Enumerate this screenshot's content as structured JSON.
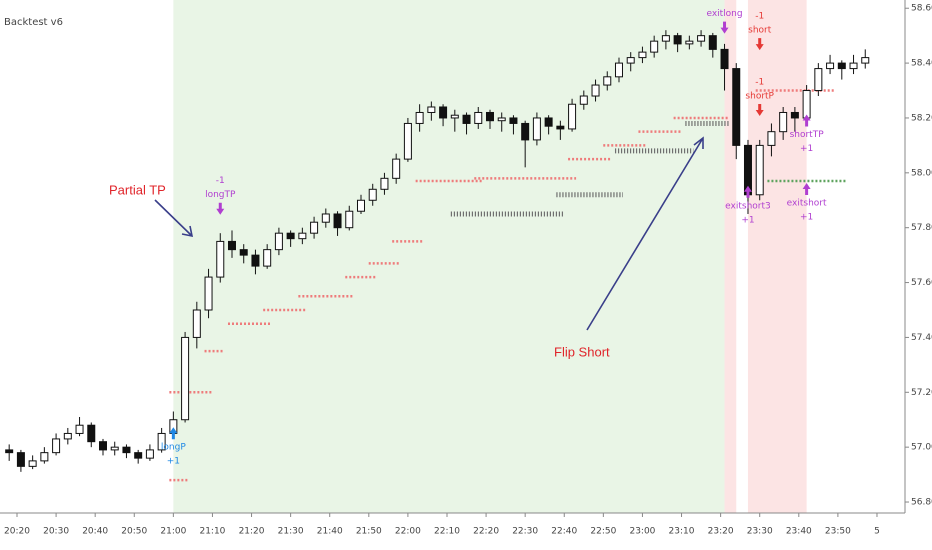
{
  "chart_data": {
    "type": "candlestick",
    "title": "Backtest v6",
    "categories": [
      "20:18",
      "20:21",
      "20:24",
      "20:27",
      "20:30",
      "20:33",
      "20:36",
      "20:39",
      "20:42",
      "20:45",
      "20:48",
      "20:51",
      "20:54",
      "20:57",
      "21:00",
      "21:03",
      "21:06",
      "21:09",
      "21:12",
      "21:15",
      "21:18",
      "21:21",
      "21:24",
      "21:27",
      "21:30",
      "21:33",
      "21:36",
      "21:39",
      "21:42",
      "21:45",
      "21:48",
      "21:51",
      "21:54",
      "21:57",
      "22:00",
      "22:03",
      "22:06",
      "22:09",
      "22:12",
      "22:15",
      "22:18",
      "22:21",
      "22:24",
      "22:27",
      "22:30",
      "22:33",
      "22:36",
      "22:39",
      "22:42",
      "22:45",
      "22:48",
      "22:51",
      "22:54",
      "22:57",
      "23:00",
      "23:03",
      "23:06",
      "23:09",
      "23:12",
      "23:15",
      "23:18",
      "23:21",
      "23:24",
      "23:27",
      "23:30",
      "23:33",
      "23:36",
      "23:39",
      "23:42",
      "23:45",
      "23:48",
      "23:51",
      "23:54",
      "23:57"
    ],
    "candles": [
      [
        56.99,
        57.01,
        56.95,
        56.98
      ],
      [
        56.98,
        56.99,
        56.91,
        56.93
      ],
      [
        56.93,
        56.97,
        56.92,
        56.95
      ],
      [
        56.95,
        57.0,
        56.94,
        56.98
      ],
      [
        56.98,
        57.05,
        56.97,
        57.03
      ],
      [
        57.03,
        57.07,
        57.01,
        57.05
      ],
      [
        57.05,
        57.11,
        57.04,
        57.08
      ],
      [
        57.08,
        57.09,
        57.0,
        57.02
      ],
      [
        57.02,
        57.03,
        56.97,
        56.99
      ],
      [
        56.99,
        57.02,
        56.97,
        57.0
      ],
      [
        57.0,
        57.01,
        56.96,
        56.98
      ],
      [
        56.98,
        56.99,
        56.94,
        56.96
      ],
      [
        56.96,
        57.01,
        56.95,
        56.99
      ],
      [
        56.99,
        57.07,
        56.98,
        57.05
      ],
      [
        57.05,
        57.13,
        57.03,
        57.1
      ],
      [
        57.1,
        57.42,
        57.09,
        57.4
      ],
      [
        57.4,
        57.53,
        57.36,
        57.5
      ],
      [
        57.5,
        57.65,
        57.47,
        57.62
      ],
      [
        57.62,
        57.78,
        57.6,
        57.75
      ],
      [
        57.75,
        57.79,
        57.69,
        57.72
      ],
      [
        57.72,
        57.74,
        57.67,
        57.7
      ],
      [
        57.7,
        57.72,
        57.63,
        57.66
      ],
      [
        57.66,
        57.74,
        57.65,
        57.72
      ],
      [
        57.72,
        57.8,
        57.7,
        57.78
      ],
      [
        57.78,
        57.79,
        57.73,
        57.76
      ],
      [
        57.76,
        57.8,
        57.74,
        57.78
      ],
      [
        57.78,
        57.84,
        57.76,
        57.82
      ],
      [
        57.82,
        57.87,
        57.8,
        57.85
      ],
      [
        57.85,
        57.86,
        57.77,
        57.8
      ],
      [
        57.8,
        57.88,
        57.79,
        57.86
      ],
      [
        57.86,
        57.92,
        57.85,
        57.9
      ],
      [
        57.9,
        57.96,
        57.88,
        57.94
      ],
      [
        57.94,
        58.0,
        57.92,
        57.98
      ],
      [
        57.98,
        58.07,
        57.96,
        58.05
      ],
      [
        58.05,
        58.2,
        58.04,
        58.18
      ],
      [
        58.18,
        58.25,
        58.15,
        58.22
      ],
      [
        58.22,
        58.26,
        58.19,
        58.24
      ],
      [
        58.24,
        58.25,
        58.17,
        58.2
      ],
      [
        58.2,
        58.23,
        58.15,
        58.21
      ],
      [
        58.21,
        58.22,
        58.14,
        58.18
      ],
      [
        58.18,
        58.24,
        58.16,
        58.22
      ],
      [
        58.22,
        58.23,
        58.16,
        58.19
      ],
      [
        58.19,
        58.22,
        58.15,
        58.2
      ],
      [
        58.2,
        58.21,
        58.14,
        58.18
      ],
      [
        58.18,
        58.19,
        58.02,
        58.12
      ],
      [
        58.12,
        58.22,
        58.1,
        58.2
      ],
      [
        58.2,
        58.21,
        58.14,
        58.17
      ],
      [
        58.17,
        58.19,
        58.12,
        58.16
      ],
      [
        58.16,
        58.27,
        58.15,
        58.25
      ],
      [
        58.25,
        58.3,
        58.23,
        58.28
      ],
      [
        58.28,
        58.34,
        58.26,
        58.32
      ],
      [
        58.32,
        58.37,
        58.3,
        58.35
      ],
      [
        58.35,
        58.42,
        58.33,
        58.4
      ],
      [
        58.4,
        58.44,
        58.37,
        58.42
      ],
      [
        58.42,
        58.46,
        58.4,
        58.44
      ],
      [
        58.44,
        58.5,
        58.42,
        58.48
      ],
      [
        58.48,
        58.52,
        58.45,
        58.5
      ],
      [
        58.5,
        58.51,
        58.44,
        58.47
      ],
      [
        58.47,
        58.5,
        58.45,
        58.48
      ],
      [
        58.48,
        58.52,
        58.46,
        58.5
      ],
      [
        58.5,
        58.51,
        58.42,
        58.45
      ],
      [
        58.45,
        58.47,
        58.3,
        58.38
      ],
      [
        58.38,
        58.4,
        58.05,
        58.1
      ],
      [
        58.1,
        58.12,
        57.85,
        57.92
      ],
      [
        57.92,
        58.12,
        57.9,
        58.1
      ],
      [
        58.1,
        58.18,
        58.06,
        58.15
      ],
      [
        58.15,
        58.24,
        58.12,
        58.22
      ],
      [
        58.22,
        58.24,
        58.15,
        58.2
      ],
      [
        58.2,
        58.32,
        58.18,
        58.3
      ],
      [
        58.3,
        58.4,
        58.28,
        58.38
      ],
      [
        58.38,
        58.43,
        58.36,
        58.4
      ],
      [
        58.4,
        58.41,
        58.34,
        58.38
      ],
      [
        58.38,
        58.43,
        58.36,
        58.4
      ],
      [
        58.4,
        58.45,
        58.38,
        58.42
      ]
    ],
    "ylim": [
      56.76,
      58.63
    ],
    "yticks": [
      {
        "value": 56.8,
        "label": "56.80"
      },
      {
        "value": 57.0,
        "label": "57.00"
      },
      {
        "value": 57.2,
        "label": "57.20"
      },
      {
        "value": 57.4,
        "label": "57.40"
      },
      {
        "value": 57.6,
        "label": "57.60"
      },
      {
        "value": 57.8,
        "label": "57.80"
      },
      {
        "value": 58.0,
        "label": "58.00"
      },
      {
        "value": 58.2,
        "label": "58.20"
      },
      {
        "value": 58.4,
        "label": "58.40"
      },
      {
        "value": 58.6,
        "label": "58.60"
      }
    ],
    "xticks": [
      "20:20",
      "20:30",
      "20:40",
      "20:50",
      "21:00",
      "21:10",
      "21:20",
      "21:30",
      "21:40",
      "21:50",
      "22:00",
      "22:10",
      "22:20",
      "22:30",
      "22:40",
      "22:50",
      "23:00",
      "23:10",
      "23:20",
      "23:30",
      "23:40",
      "23:50",
      {
        "value": "00:00",
        "label": "5"
      }
    ],
    "shading": [
      {
        "from": "21:00",
        "to": "23:21",
        "color": "#e9f5e6"
      },
      {
        "from": "23:21",
        "to": "23:24",
        "color": "#fce4e4"
      },
      {
        "from": "23:27",
        "to": "23:42",
        "color": "#fce4e4"
      }
    ],
    "levels": [
      {
        "color": "#ee7b7b",
        "segments": [
          [
            56.88,
            "21:00",
            "21:03"
          ],
          [
            57.2,
            "21:00",
            "21:09"
          ],
          [
            57.35,
            "21:09",
            "21:12"
          ],
          [
            57.45,
            "21:15",
            "21:24"
          ],
          [
            57.5,
            "21:24",
            "21:33"
          ],
          [
            57.55,
            "21:33",
            "21:45"
          ],
          [
            57.62,
            "21:45",
            "21:51"
          ],
          [
            57.67,
            "21:51",
            "21:57"
          ],
          [
            57.75,
            "21:57",
            "22:03"
          ],
          [
            57.97,
            "22:03",
            "22:18"
          ],
          [
            57.98,
            "22:18",
            "22:42"
          ],
          [
            58.05,
            "22:42",
            "22:51"
          ],
          [
            58.1,
            "22:51",
            "23:00"
          ],
          [
            58.15,
            "23:00",
            "23:09"
          ],
          [
            58.2,
            "23:09",
            "23:21"
          ],
          [
            58.3,
            "23:30",
            "23:48"
          ]
        ]
      },
      {
        "color": "#6f6f6f",
        "segments": [
          [
            57.85,
            "22:12",
            "22:39"
          ],
          [
            57.92,
            "22:39",
            "22:54"
          ],
          [
            58.08,
            "22:54",
            "23:12"
          ],
          [
            58.18,
            "23:12",
            "23:21"
          ]
        ]
      },
      {
        "color": "#5ea35e",
        "segments": [
          [
            57.97,
            "23:33",
            "23:51"
          ]
        ]
      }
    ],
    "signals": [
      {
        "at": "21:00",
        "price": 57.08,
        "side": "below",
        "color": "#1e88e5",
        "labels": [
          "longP",
          "+1"
        ]
      },
      {
        "at": "21:12",
        "price": 57.84,
        "side": "above",
        "color": "#b03fd0",
        "labels": [
          "longTP",
          "-1"
        ]
      },
      {
        "at": "23:21",
        "price": 58.5,
        "side": "above",
        "color": "#b03fd0",
        "labels": [
          "exitlong"
        ]
      },
      {
        "at": "23:30",
        "price": 58.44,
        "side": "above",
        "color": "#e53935",
        "labels": [
          "short",
          "-1"
        ]
      },
      {
        "at": "23:30",
        "price": 58.2,
        "side": "above",
        "color": "#e53935",
        "labels": [
          "shortP",
          "-1"
        ]
      },
      {
        "at": "23:27",
        "price": 57.96,
        "side": "below",
        "color": "#b03fd0",
        "labels": [
          "exitshort3",
          "+1"
        ]
      },
      {
        "at": "23:42",
        "price": 58.22,
        "side": "below",
        "color": "#b03fd0",
        "labels": [
          "shortTP",
          "+1"
        ]
      },
      {
        "at": "23:42",
        "price": 57.97,
        "side": "below",
        "color": "#b03fd0",
        "labels": [
          "exitshort",
          "+1"
        ]
      }
    ],
    "annotations": [
      {
        "text": "Partial TP"
      },
      {
        "text": "Flip Short"
      }
    ]
  }
}
